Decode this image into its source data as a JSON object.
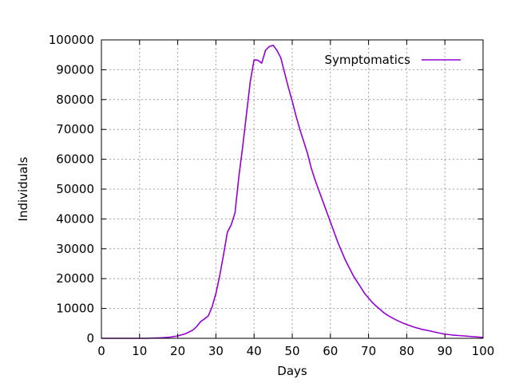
{
  "chart_data": {
    "type": "line",
    "xlabel": "Days",
    "ylabel": "Individuals",
    "xlim": [
      0,
      100
    ],
    "ylim": [
      0,
      100000
    ],
    "xticks": [
      0,
      10,
      20,
      30,
      40,
      50,
      60,
      70,
      80,
      90,
      100
    ],
    "yticks": [
      0,
      10000,
      20000,
      30000,
      40000,
      50000,
      60000,
      70000,
      80000,
      90000,
      100000
    ],
    "grid": true,
    "legend_position": "top-right",
    "series": [
      {
        "name": "Symptomatics",
        "color": "#9400d3",
        "x": [
          0,
          5,
          10,
          12,
          14,
          16,
          18,
          20,
          22,
          24,
          25,
          26,
          27,
          28,
          29,
          30,
          31,
          32,
          33,
          34,
          35,
          36,
          37,
          38,
          39,
          40,
          41,
          42,
          43,
          44,
          45,
          46,
          47,
          48,
          49,
          50,
          51,
          52,
          53,
          54,
          55,
          56,
          57,
          58,
          59,
          60,
          61,
          62,
          63,
          64,
          65,
          66,
          67,
          68,
          69,
          70,
          71,
          72,
          73,
          74,
          75,
          76,
          77,
          78,
          79,
          80,
          82,
          84,
          86,
          88,
          90,
          92,
          94,
          96,
          98,
          100
        ],
        "y": [
          0,
          0,
          0,
          0,
          100,
          200,
          400,
          800,
          1500,
          2800,
          4000,
          5600,
          6500,
          7500,
          10500,
          15000,
          21000,
          28000,
          35500,
          38000,
          42000,
          54000,
          64000,
          75000,
          86000,
          93300,
          93200,
          92200,
          96500,
          97800,
          98200,
          96500,
          94000,
          89000,
          84000,
          79500,
          74500,
          70000,
          66000,
          62000,
          57000,
          53000,
          49500,
          46000,
          42500,
          39000,
          35500,
          32000,
          29000,
          26000,
          23500,
          21000,
          19000,
          17000,
          15000,
          13500,
          12000,
          10800,
          9700,
          8600,
          7700,
          7000,
          6300,
          5700,
          5100,
          4600,
          3700,
          3000,
          2500,
          1900,
          1400,
          1100,
          900,
          700,
          500,
          300
        ]
      }
    ]
  }
}
